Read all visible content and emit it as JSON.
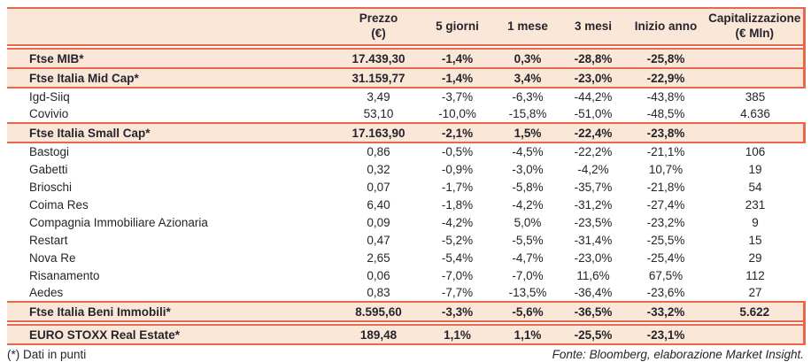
{
  "colors": {
    "accent": "#e8684e",
    "band_bg": "#fbe7d7",
    "text": "#25242e"
  },
  "table": {
    "headers": {
      "name": "",
      "prezzo_line1": "Prezzo",
      "prezzo_line2": "(€)",
      "giorni5": "5 giorni",
      "mese1": "1 mese",
      "mesi3": "3 mesi",
      "inizio_anno": "Inizio anno",
      "cap_line1": "Capitalizzazione",
      "cap_line2": "(€ Mln)"
    },
    "row_meta": [
      {
        "type": "index",
        "gap_before": true
      },
      {
        "type": "index",
        "gap_before": false
      },
      {
        "type": "stock",
        "gap_before": false
      },
      {
        "type": "stock",
        "gap_before": false
      },
      {
        "type": "index",
        "gap_before": false
      },
      {
        "type": "stock",
        "gap_before": false
      },
      {
        "type": "stock",
        "gap_before": false
      },
      {
        "type": "stock",
        "gap_before": false
      },
      {
        "type": "stock",
        "gap_before": false
      },
      {
        "type": "stock",
        "gap_before": false
      },
      {
        "type": "stock",
        "gap_before": false
      },
      {
        "type": "stock",
        "gap_before": false
      },
      {
        "type": "stock",
        "gap_before": false
      },
      {
        "type": "stock",
        "gap_before": false
      },
      {
        "type": "index",
        "gap_before": false
      },
      {
        "type": "index",
        "gap_before": true
      }
    ]
  },
  "footer": {
    "note_left": "(*) Dati in punti",
    "source_right": "Fonte: Bloomberg, elaborazione Market Insight."
  },
  "chart_data": {
    "type": "table",
    "title": "",
    "columns": [
      "",
      "Prezzo (€)",
      "5 giorni",
      "1 mese",
      "3 mesi",
      "Inizio anno",
      "Capitalizzazione (€ Mln)"
    ],
    "rows": [
      [
        "Ftse MIB*",
        "17.439,30",
        "-1,4%",
        "0,3%",
        "-28,8%",
        "-25,8%",
        ""
      ],
      [
        "Ftse Italia Mid Cap*",
        "31.159,77",
        "-1,4%",
        "3,4%",
        "-23,0%",
        "-22,9%",
        ""
      ],
      [
        "Igd-Siiq",
        "3,49",
        "-3,7%",
        "-6,3%",
        "-44,2%",
        "-43,8%",
        "385"
      ],
      [
        "Covivio",
        "53,10",
        "-10,0%",
        "-15,8%",
        "-51,0%",
        "-48,5%",
        "4.636"
      ],
      [
        "Ftse Italia Small Cap*",
        "17.163,90",
        "-2,1%",
        "1,5%",
        "-22,4%",
        "-23,8%",
        ""
      ],
      [
        "Bastogi",
        "0,86",
        "-0,5%",
        "-4,5%",
        "-22,2%",
        "-21,1%",
        "106"
      ],
      [
        "Gabetti",
        "0,32",
        "-0,9%",
        "-3,0%",
        "-4,2%",
        "10,7%",
        "19"
      ],
      [
        "Brioschi",
        "0,07",
        "-1,7%",
        "-5,8%",
        "-35,7%",
        "-21,8%",
        "54"
      ],
      [
        "Coima Res",
        "6,40",
        "-1,8%",
        "-4,2%",
        "-31,2%",
        "-27,4%",
        "231"
      ],
      [
        "Compagnia Immobiliare Azionaria",
        "0,09",
        "-4,2%",
        "5,0%",
        "-23,5%",
        "-23,2%",
        "9"
      ],
      [
        "Restart",
        "0,47",
        "-5,2%",
        "-5,5%",
        "-31,4%",
        "-25,5%",
        "15"
      ],
      [
        "Nova Re",
        "2,65",
        "-5,4%",
        "-4,7%",
        "-23,0%",
        "-25,4%",
        "29"
      ],
      [
        "Risanamento",
        "0,06",
        "-7,0%",
        "-7,0%",
        "11,6%",
        "67,5%",
        "112"
      ],
      [
        "Aedes",
        "0,83",
        "-7,7%",
        "-13,5%",
        "-36,4%",
        "-23,6%",
        "27"
      ],
      [
        "Ftse Italia Beni Immobili*",
        "8.595,60",
        "-3,3%",
        "-5,6%",
        "-36,5%",
        "-33,2%",
        "5.622"
      ],
      [
        "EURO STOXX Real Estate*",
        "189,48",
        "1,1%",
        "1,1%",
        "-25,5%",
        "-23,1%",
        ""
      ]
    ],
    "notes": [
      "(*) Dati in punti",
      "Fonte: Bloomberg, elaborazione Market Insight."
    ]
  }
}
